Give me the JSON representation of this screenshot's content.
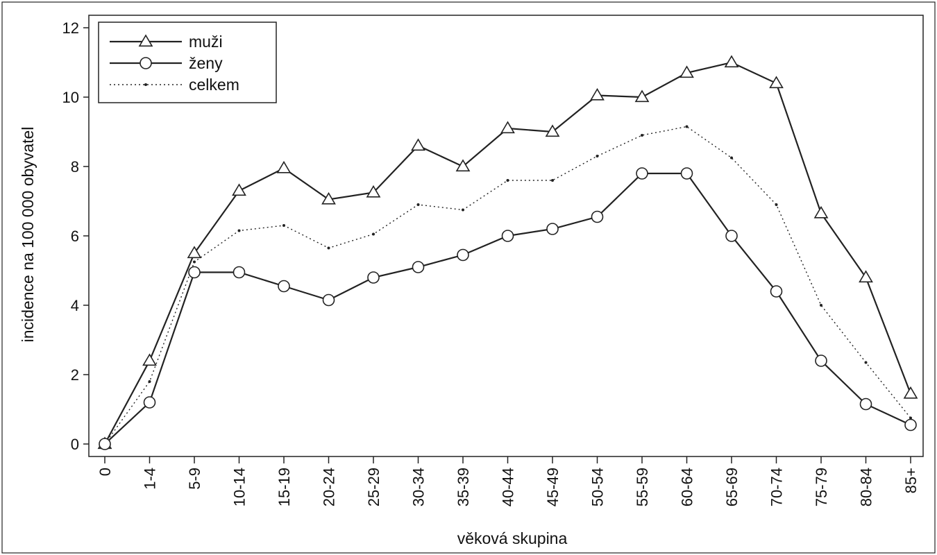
{
  "chart_data": {
    "type": "line",
    "xlabel": "věková skupina",
    "ylabel": "incidence na 100 000 obyvatel",
    "categories": [
      "0",
      "1-4",
      "5-9",
      "10-14",
      "15-19",
      "20-24",
      "25-29",
      "30-34",
      "35-39",
      "40-44",
      "45-49",
      "50-54",
      "55-59",
      "60-64",
      "65-69",
      "70-74",
      "75-79",
      "80-84",
      "85+"
    ],
    "ylim": [
      0,
      12
    ],
    "yticks": [
      "0",
      "2",
      "4",
      "6",
      "8",
      "10",
      "12"
    ],
    "grid": false,
    "legend_position": "top-left",
    "series": [
      {
        "name": "muži",
        "marker": "triangle",
        "style": "solid",
        "values": [
          0,
          2.4,
          5.5,
          7.3,
          7.95,
          7.05,
          7.25,
          8.6,
          8.0,
          9.1,
          9.0,
          10.05,
          10.0,
          10.7,
          11.0,
          10.4,
          6.65,
          4.8,
          1.45
        ]
      },
      {
        "name": "ženy",
        "marker": "circle",
        "style": "solid",
        "values": [
          0,
          1.2,
          4.95,
          4.95,
          4.55,
          4.15,
          4.8,
          5.1,
          5.45,
          6.0,
          6.2,
          6.55,
          7.8,
          7.8,
          6.0,
          4.4,
          2.4,
          1.15,
          0.55
        ]
      },
      {
        "name": "celkem",
        "marker": "dot",
        "style": "dotted",
        "values": [
          0,
          1.8,
          5.25,
          6.15,
          6.3,
          5.65,
          6.05,
          6.9,
          6.75,
          7.6,
          7.6,
          8.3,
          8.9,
          9.15,
          8.25,
          6.9,
          4.0,
          2.35,
          0.75
        ]
      }
    ]
  }
}
